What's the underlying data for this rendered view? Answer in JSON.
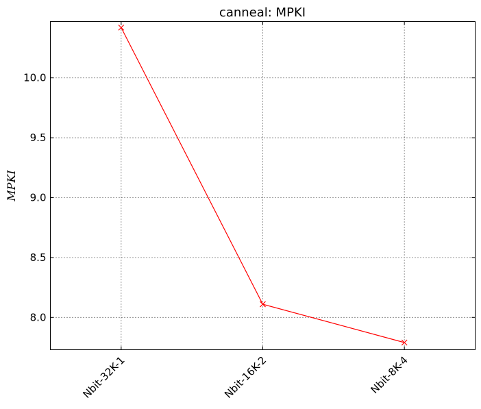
{
  "chart_data": {
    "type": "line",
    "title": "canneal: MPKI",
    "xlabel": "",
    "ylabel": "MPKI",
    "categories": [
      "Nbit-32K-1",
      "Nbit-16K-2",
      "Nbit-8K-4"
    ],
    "series": [
      {
        "values": [
          10.42,
          8.11,
          7.79
        ],
        "color": "#ff0000",
        "marker": "x"
      }
    ],
    "ylim": [
      7.73,
      10.47
    ],
    "yticks": [
      8.0,
      8.5,
      9.0,
      9.5,
      10.0
    ],
    "ytick_labels": [
      "8.0",
      "8.5",
      "9.0",
      "9.5",
      "10.0"
    ],
    "grid": true,
    "x_tick_rotation": 45
  }
}
